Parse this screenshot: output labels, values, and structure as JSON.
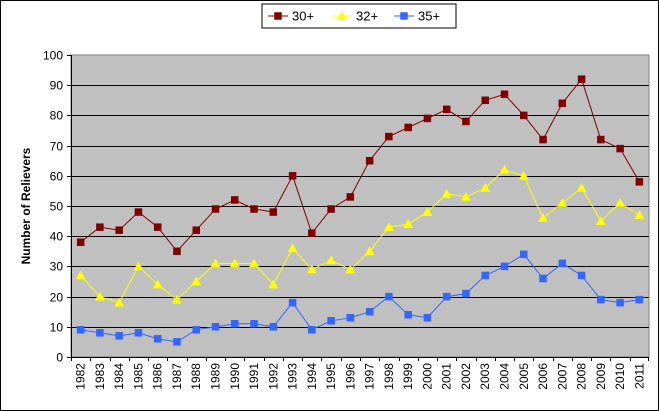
{
  "chart_data": {
    "type": "line",
    "title": "",
    "xlabel": "",
    "ylabel": "Number of Relievers",
    "ylim": [
      0,
      100
    ],
    "yticks": [
      0,
      10,
      20,
      30,
      40,
      50,
      60,
      70,
      80,
      90,
      100
    ],
    "grid": true,
    "legend_position": "top-center",
    "plot_background": "#c0c0c0",
    "categories": [
      "1982",
      "1983",
      "1984",
      "1985",
      "1986",
      "1987",
      "1988",
      "1989",
      "1990",
      "1991",
      "1992",
      "1993",
      "1994",
      "1995",
      "1996",
      "1997",
      "1998",
      "1999",
      "2000",
      "2001",
      "2002",
      "2003",
      "2004",
      "2005",
      "2006",
      "2007",
      "2008",
      "2009",
      "2010",
      "2011"
    ],
    "series": [
      {
        "name": "30+",
        "color": "#800000",
        "marker": "square",
        "marker_color": "#800000",
        "values": [
          38,
          43,
          42,
          48,
          43,
          35,
          42,
          49,
          52,
          49,
          48,
          60,
          41,
          49,
          53,
          65,
          73,
          76,
          79,
          82,
          78,
          85,
          87,
          80,
          72,
          84,
          92,
          72,
          69,
          58
        ]
      },
      {
        "name": "32+",
        "color": "#ffff00",
        "marker": "triangle",
        "marker_color": "#ffff00",
        "values": [
          27,
          20,
          18,
          30,
          24,
          19,
          25,
          31,
          31,
          31,
          24,
          36,
          29,
          32,
          29,
          35,
          43,
          44,
          48,
          54,
          53,
          56,
          62,
          60,
          46,
          51,
          56,
          45,
          51,
          47
        ]
      },
      {
        "name": "35+",
        "color": "#3366ff",
        "marker": "square",
        "marker_color": "#3366ff",
        "values": [
          9,
          8,
          7,
          8,
          6,
          5,
          9,
          10,
          11,
          11,
          10,
          18,
          9,
          12,
          13,
          15,
          20,
          14,
          13,
          20,
          21,
          27,
          30,
          34,
          26,
          31,
          27,
          19,
          18,
          19
        ]
      }
    ]
  }
}
